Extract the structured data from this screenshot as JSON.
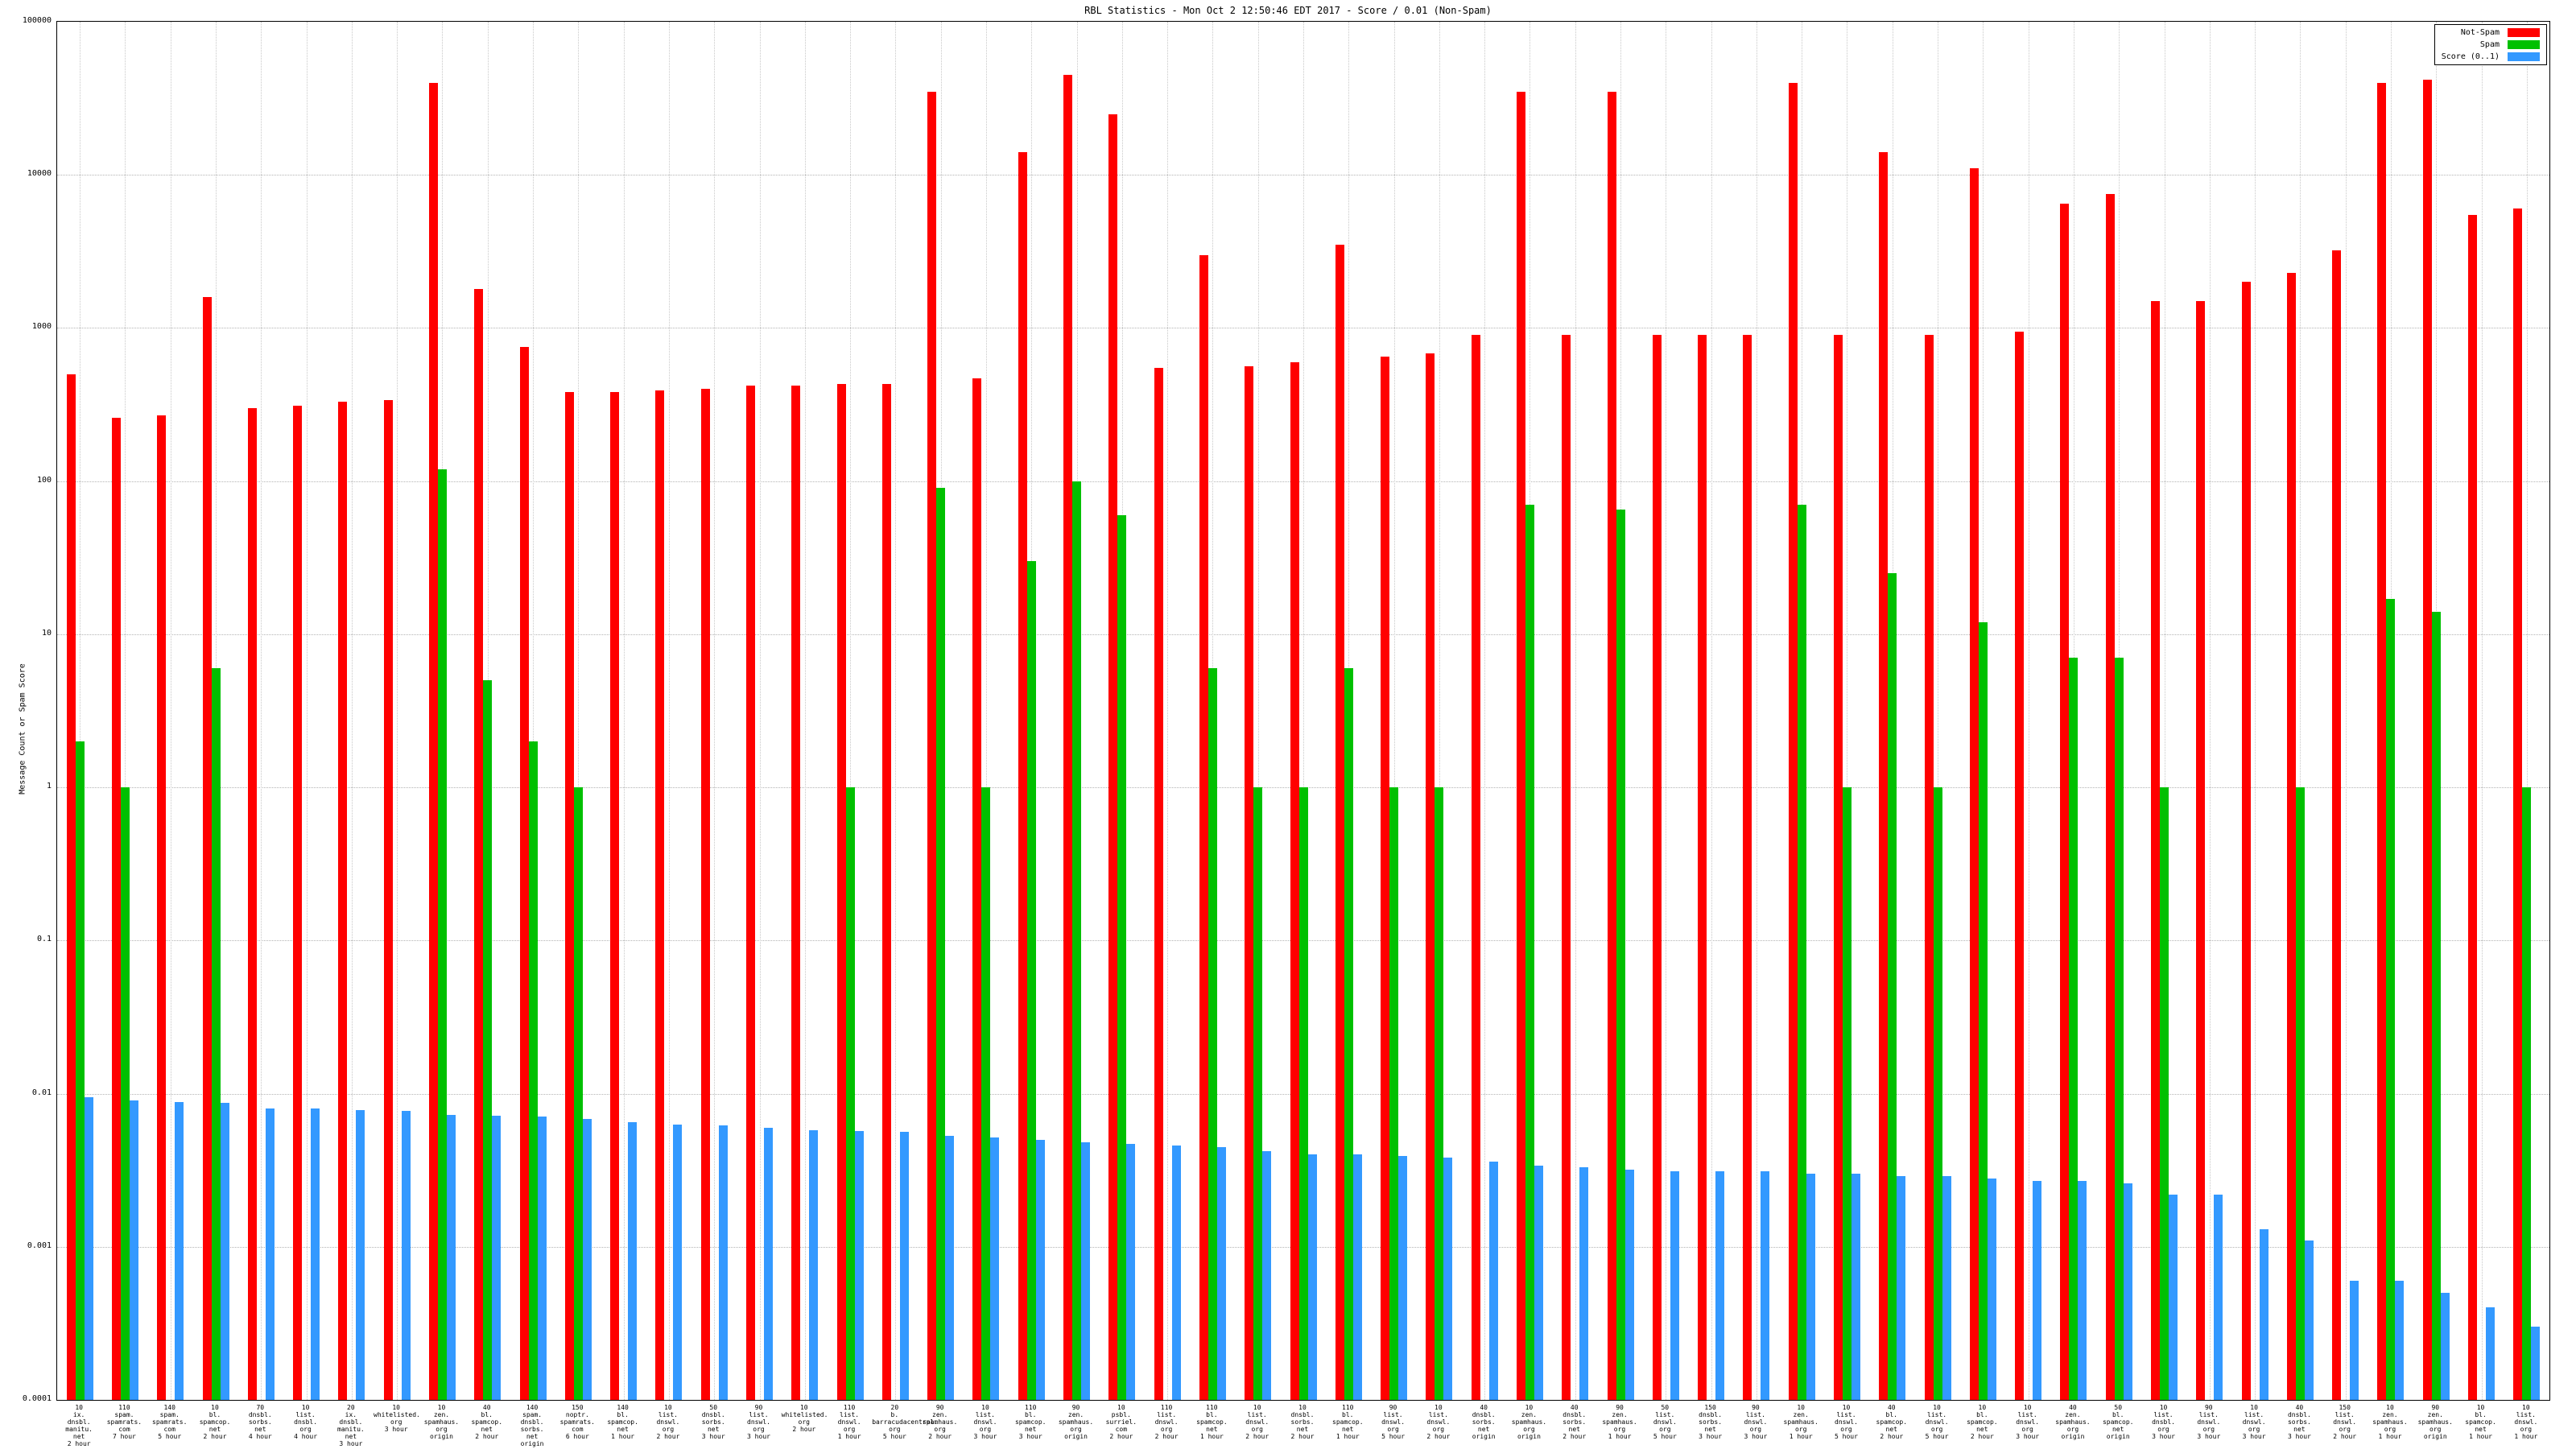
{
  "colors": {
    "not_spam": "#ff0000",
    "spam": "#00c000",
    "score": "#3399ff",
    "grid": "#b4b4b4",
    "axis": "#000000"
  },
  "chart_data": {
    "type": "bar",
    "title": "RBL Statistics - Mon Oct  2 12:50:46 EDT 2017 - Score / 0.01 (Non-Spam)",
    "ylabel": "Message Count or Spam Score",
    "xlabel": "",
    "log_scale": true,
    "ylim": [
      0.0001,
      100000
    ],
    "ytick_values": [
      100000,
      10000,
      1000,
      100,
      10,
      1,
      0.1,
      0.01,
      0.001,
      0.0001
    ],
    "ytick_labels": [
      "100000",
      "10000",
      "1000",
      "100",
      "10",
      "1",
      "0.1",
      "0.01",
      "0.001",
      "0.0001"
    ],
    "grid": true,
    "legend_position": "top-right",
    "legend": [
      {
        "key": "not_spam",
        "name": "Not-Spam"
      },
      {
        "key": "spam",
        "name": "Spam"
      },
      {
        "key": "score",
        "name": "Score (0..1)"
      }
    ],
    "groups": [
      {
        "label": "10\nix.\ndnsbl.\nmanitu.\nnet\n2 hour",
        "not_spam": 500,
        "spam": 2,
        "score": 0.0095
      },
      {
        "label": "110\nspam.\nspamrats.\ncom\n7 hour",
        "not_spam": 260,
        "spam": 1,
        "score": 0.009
      },
      {
        "label": "140\nspam.\nspamrats.\ncom\n5 hour",
        "not_spam": 270,
        "spam": 0,
        "score": 0.0088
      },
      {
        "label": "10\nbl.\nspamcop.\nnet\n2 hour",
        "not_spam": 1600,
        "spam": 6,
        "score": 0.0087
      },
      {
        "label": "70\ndnsbl.\nsorbs.\nnet\n4 hour",
        "not_spam": 300,
        "spam": 0,
        "score": 0.008
      },
      {
        "label": "10\nlist.\ndnsbl.\norg\n4 hour",
        "not_spam": 310,
        "spam": 0,
        "score": 0.008
      },
      {
        "label": "20\nix.\ndnsbl.\nmanitu.\nnet\n3 hour",
        "not_spam": 330,
        "spam": 0,
        "score": 0.0078
      },
      {
        "label": "10\nwhitelisted.\norg\n3 hour",
        "not_spam": 340,
        "spam": 0,
        "score": 0.0077
      },
      {
        "label": "10\nzen.\nspamhaus.\norg\norigin",
        "not_spam": 40000,
        "spam": 120,
        "score": 0.0073
      },
      {
        "label": "40\nbl.\nspamcop.\nnet\n2 hour",
        "not_spam": 1800,
        "spam": 5,
        "score": 0.0072
      },
      {
        "label": "140\nspam.\ndnsbl.\nsorbs.\nnet\norigin",
        "not_spam": 750,
        "spam": 2,
        "score": 0.0071
      },
      {
        "label": "150\nnoptr.\nspamrats.\ncom\n6 hour",
        "not_spam": 380,
        "spam": 1,
        "score": 0.0068
      },
      {
        "label": "140\nbl.\nspamcop.\nnet\n1 hour",
        "not_spam": 380,
        "spam": 0,
        "score": 0.0065
      },
      {
        "label": "10\nlist.\ndnswl.\norg\n2 hour",
        "not_spam": 390,
        "spam": 0,
        "score": 0.0063
      },
      {
        "label": "50\ndnsbl.\nsorbs.\nnet\n3 hour",
        "not_spam": 400,
        "spam": 0,
        "score": 0.0062
      },
      {
        "label": "90\nlist.\ndnswl.\norg\n3 hour",
        "not_spam": 420,
        "spam": 0,
        "score": 0.006
      },
      {
        "label": "10\nwhitelisted.\norg\n2 hour",
        "not_spam": 420,
        "spam": 0,
        "score": 0.0058
      },
      {
        "label": "110\nlist.\ndnswl.\norg\n1 hour",
        "not_spam": 430,
        "spam": 1,
        "score": 0.0057
      },
      {
        "label": "20\nb.\nbarracudacentral.\norg\n5 hour",
        "not_spam": 430,
        "spam": 0,
        "score": 0.0056
      },
      {
        "label": "90\nzen.\nspamhaus.\norg\n2 hour",
        "not_spam": 35000,
        "spam": 90,
        "score": 0.0053
      },
      {
        "label": "10\nlist.\ndnswl.\norg\n3 hour",
        "not_spam": 470,
        "spam": 1,
        "score": 0.0052
      },
      {
        "label": "110\nbl.\nspamcop.\nnet\n3 hour",
        "not_spam": 14000,
        "spam": 30,
        "score": 0.005
      },
      {
        "label": "90\nzen.\nspamhaus.\norg\norigin",
        "not_spam": 45000,
        "spam": 100,
        "score": 0.0048
      },
      {
        "label": "10\npsbl.\nsurriel.\ncom\n2 hour",
        "not_spam": 25000,
        "spam": 60,
        "score": 0.0047
      },
      {
        "label": "110\nlist.\ndnswl.\norg\n2 hour",
        "not_spam": 550,
        "spam": 0,
        "score": 0.0046
      },
      {
        "label": "110\nbl.\nspamcop.\nnet\n1 hour",
        "not_spam": 3000,
        "spam": 6,
        "score": 0.0045
      },
      {
        "label": "10\nlist.\ndnswl.\norg\n2 hour",
        "not_spam": 560,
        "spam": 1,
        "score": 0.0042
      },
      {
        "label": "10\ndnsbl.\nsorbs.\nnet\n2 hour",
        "not_spam": 600,
        "spam": 1,
        "score": 0.004
      },
      {
        "label": "110\nbl.\nspamcop.\nnet\n1 hour",
        "not_spam": 3500,
        "spam": 6,
        "score": 0.004
      },
      {
        "label": "90\nlist.\ndnswl.\norg\n5 hour",
        "not_spam": 650,
        "spam": 1,
        "score": 0.0039
      },
      {
        "label": "10\nlist.\ndnswl.\norg\n2 hour",
        "not_spam": 680,
        "spam": 1,
        "score": 0.0038
      },
      {
        "label": "40\ndnsbl.\nsorbs.\nnet\norigin",
        "not_spam": 900,
        "spam": 0,
        "score": 0.0036
      },
      {
        "label": "10\nzen.\nspamhaus.\norg\norigin",
        "not_spam": 35000,
        "spam": 70,
        "score": 0.0034
      },
      {
        "label": "40\ndnsbl.\nsorbs.\nnet\n2 hour",
        "not_spam": 900,
        "spam": 0,
        "score": 0.0033
      },
      {
        "label": "90\nzen.\nspamhaus.\norg\n1 hour",
        "not_spam": 35000,
        "spam": 65,
        "score": 0.0032
      },
      {
        "label": "50\nlist.\ndnswl.\norg\n5 hour",
        "not_spam": 900,
        "spam": 0,
        "score": 0.0031
      },
      {
        "label": "150\ndnsbl.\nsorbs.\nnet\n3 hour",
        "not_spam": 900,
        "spam": 0,
        "score": 0.0031
      },
      {
        "label": "90\nlist.\ndnswl.\norg\n3 hour",
        "not_spam": 900,
        "spam": 0,
        "score": 0.0031
      },
      {
        "label": "10\nzen.\nspamhaus.\norg\n1 hour",
        "not_spam": 40000,
        "spam": 70,
        "score": 0.003
      },
      {
        "label": "10\nlist.\ndnswl.\norg\n5 hour",
        "not_spam": 900,
        "spam": 1,
        "score": 0.003
      },
      {
        "label": "40\nbl.\nspamcop.\nnet\n2 hour",
        "not_spam": 14000,
        "spam": 25,
        "score": 0.0029
      },
      {
        "label": "10\nlist.\ndnswl.\norg\n5 hour",
        "not_spam": 900,
        "spam": 1,
        "score": 0.0029
      },
      {
        "label": "10\nbl.\nspamcop.\nnet\n2 hour",
        "not_spam": 11000,
        "spam": 12,
        "score": 0.0028
      },
      {
        "label": "10\nlist.\ndnswl.\norg\n3 hour",
        "not_spam": 950,
        "spam": 0,
        "score": 0.0027
      },
      {
        "label": "40\nzen.\nspamhaus.\norg\norigin",
        "not_spam": 6500,
        "spam": 7,
        "score": 0.0027
      },
      {
        "label": "50\nbl.\nspamcop.\nnet\norigin",
        "not_spam": 7500,
        "spam": 7,
        "score": 0.0026
      },
      {
        "label": "10\nlist.\ndnsbl.\norg\n3 hour",
        "not_spam": 1500,
        "spam": 1,
        "score": 0.0022
      },
      {
        "label": "90\nlist.\ndnswl.\norg\n3 hour",
        "not_spam": 1500,
        "spam": 0,
        "score": 0.0022
      },
      {
        "label": "10\nlist.\ndnswl.\norg\n3 hour",
        "not_spam": 2000,
        "spam": 0,
        "score": 0.0013
      },
      {
        "label": "40\ndnsbl.\nsorbs.\nnet\n3 hour",
        "not_spam": 2300,
        "spam": 1,
        "score": 0.0011
      },
      {
        "label": "150\nlist.\ndnswl.\norg\n2 hour",
        "not_spam": 3200,
        "spam": 0,
        "score": 0.0006
      },
      {
        "label": "10\nzen.\nspamhaus.\norg\n1 hour",
        "not_spam": 40000,
        "spam": 17,
        "score": 0.0006
      },
      {
        "label": "90\nzen.\nspamhaus.\norg\norigin",
        "not_spam": 42000,
        "spam": 14,
        "score": 0.0005
      },
      {
        "label": "10\nbl.\nspamcop.\nnet\n1 hour",
        "not_spam": 5500,
        "spam": 0,
        "score": 0.0004
      },
      {
        "label": "10\nlist.\ndnswl.\norg\n1 hour",
        "not_spam": 6000,
        "spam": 1,
        "score": 0.0003
      }
    ]
  }
}
